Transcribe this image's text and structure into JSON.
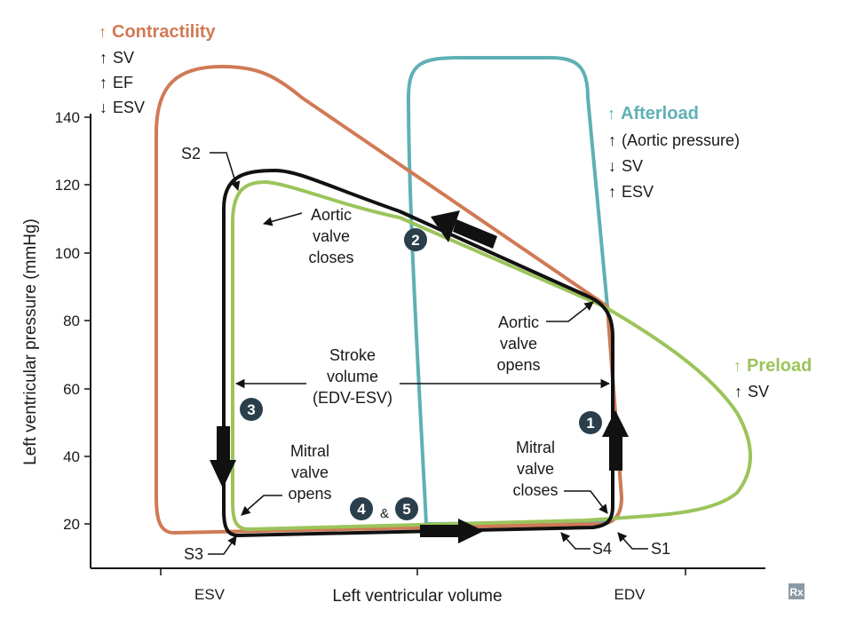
{
  "colors": {
    "contractility": "#d07a55",
    "afterload": "#5fb0b4",
    "preload": "#9cc45b",
    "baseline": "#111111",
    "marker": "#2a3f4b"
  },
  "axes": {
    "ylabel": "Left ventricular pressure  (mmHg)",
    "xlabel": "Left ventricular volume",
    "yticks": [
      "20",
      "40",
      "60",
      "80",
      "100",
      "120",
      "140"
    ],
    "xticks": [
      "ESV",
      "EDV"
    ]
  },
  "legend": {
    "contractility": {
      "title": "Contractility",
      "lines": [
        "SV",
        "EF",
        "ESV"
      ]
    },
    "afterload": {
      "title": "Afterload",
      "lines": [
        "(Aortic pressure)",
        "SV",
        "ESV"
      ]
    },
    "preload": {
      "title": "Preload",
      "lines": [
        "SV"
      ]
    }
  },
  "labels": {
    "s1": "S1",
    "s2": "S2",
    "s3": "S3",
    "s4": "S4",
    "aortic_closes": [
      "Aortic",
      "valve",
      "closes"
    ],
    "aortic_opens": [
      "Aortic",
      "valve",
      "opens"
    ],
    "mitral_opens": [
      "Mitral",
      "valve",
      "opens"
    ],
    "mitral_closes": [
      "Mitral",
      "valve",
      "closes"
    ],
    "stroke_volume": [
      "Stroke",
      "volume",
      "(EDV-ESV)"
    ]
  },
  "phases": {
    "p1": "1",
    "p2": "2",
    "p3": "3",
    "p4": "4",
    "p5": "5",
    "amp": "&"
  },
  "logo": "Rx"
}
